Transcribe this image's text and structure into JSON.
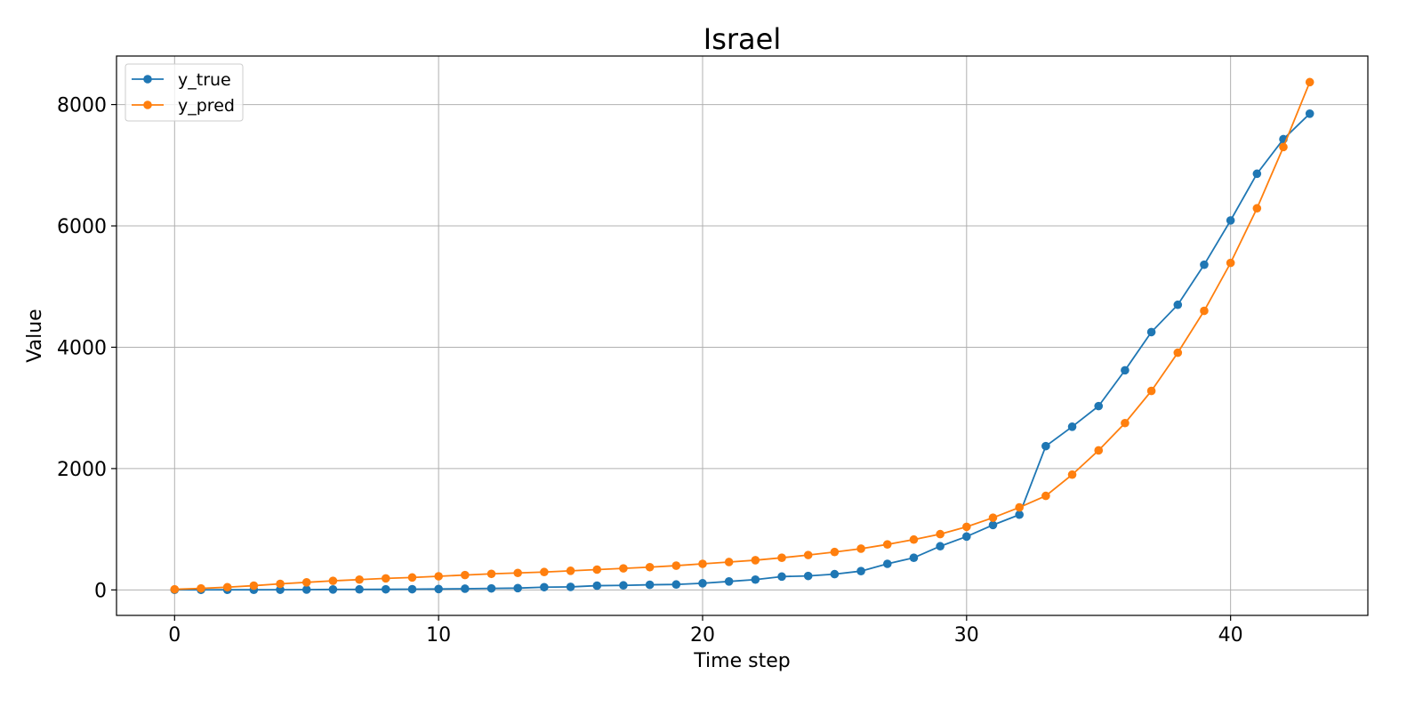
{
  "colors": {
    "y_true": "#1f77b4",
    "y_pred": "#ff7f0e",
    "grid": "#b0b0b0",
    "axes": "#000000"
  },
  "chart_data": {
    "type": "line",
    "title": "Israel",
    "xlabel": "Time step",
    "ylabel": "Value",
    "xlim": [
      -2.2,
      45.2
    ],
    "ylim": [
      -420,
      8800
    ],
    "xticks": [
      0,
      10,
      20,
      30,
      40
    ],
    "yticks": [
      0,
      2000,
      4000,
      6000,
      8000
    ],
    "grid": true,
    "legend_position": "upper-left",
    "marker": "circle",
    "x": [
      0,
      1,
      2,
      3,
      4,
      5,
      6,
      7,
      8,
      9,
      10,
      11,
      12,
      13,
      14,
      15,
      16,
      17,
      18,
      19,
      20,
      21,
      22,
      23,
      24,
      25,
      26,
      27,
      28,
      29,
      30,
      31,
      32,
      33,
      34,
      35,
      36,
      37,
      38,
      39,
      40,
      41,
      42,
      43
    ],
    "series": [
      {
        "name": "y_true",
        "values": [
          1,
          1,
          2,
          2,
          3,
          5,
          8,
          9,
          10,
          12,
          15,
          20,
          25,
          30,
          45,
          50,
          70,
          75,
          85,
          90,
          110,
          140,
          170,
          220,
          230,
          260,
          310,
          430,
          530,
          720,
          880,
          1070,
          1240,
          2370,
          2690,
          3030,
          3620,
          4250,
          4700,
          5360,
          6090,
          6860,
          7430,
          7850
        ]
      },
      {
        "name": "y_pred",
        "values": [
          10,
          25,
          45,
          70,
          100,
          125,
          150,
          170,
          190,
          205,
          225,
          245,
          265,
          280,
          295,
          315,
          335,
          355,
          375,
          400,
          430,
          460,
          490,
          530,
          575,
          625,
          680,
          750,
          830,
          920,
          1040,
          1190,
          1360,
          1550,
          1900,
          2300,
          2750,
          3280,
          3910,
          4600,
          5390,
          6290,
          7300,
          8370
        ]
      }
    ]
  }
}
